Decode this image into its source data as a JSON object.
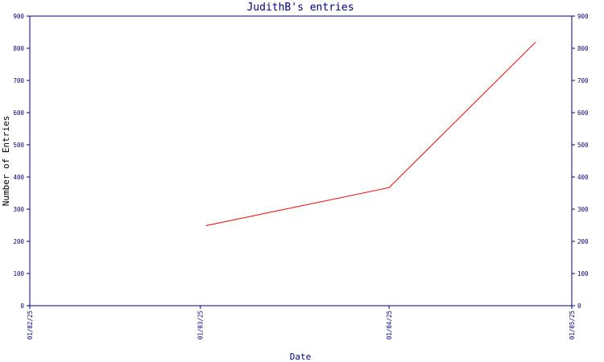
{
  "chart_data": {
    "type": "line",
    "title": "JudithB's entries",
    "xlabel": "Date",
    "ylabel": "Number of Entries",
    "x_tick_labels": [
      "01/02/25",
      "01/03/25",
      "01/04/25",
      "01/05/25"
    ],
    "y_ticks": [
      0,
      100,
      200,
      300,
      400,
      500,
      600,
      700,
      800,
      900
    ],
    "ylim": [
      0,
      900
    ],
    "xlim": [
      "2025-02-01",
      "2025-05-01"
    ],
    "right_axis": true,
    "grid": false,
    "series": [
      {
        "color": "#ff0000",
        "x": [
          "2025-03-02",
          "2025-04-01",
          "2025-04-25"
        ],
        "y": [
          249,
          367,
          818
        ]
      }
    ]
  },
  "colors": {
    "axis": "#000080",
    "line": "#ff0000",
    "background": "#ffffff"
  }
}
